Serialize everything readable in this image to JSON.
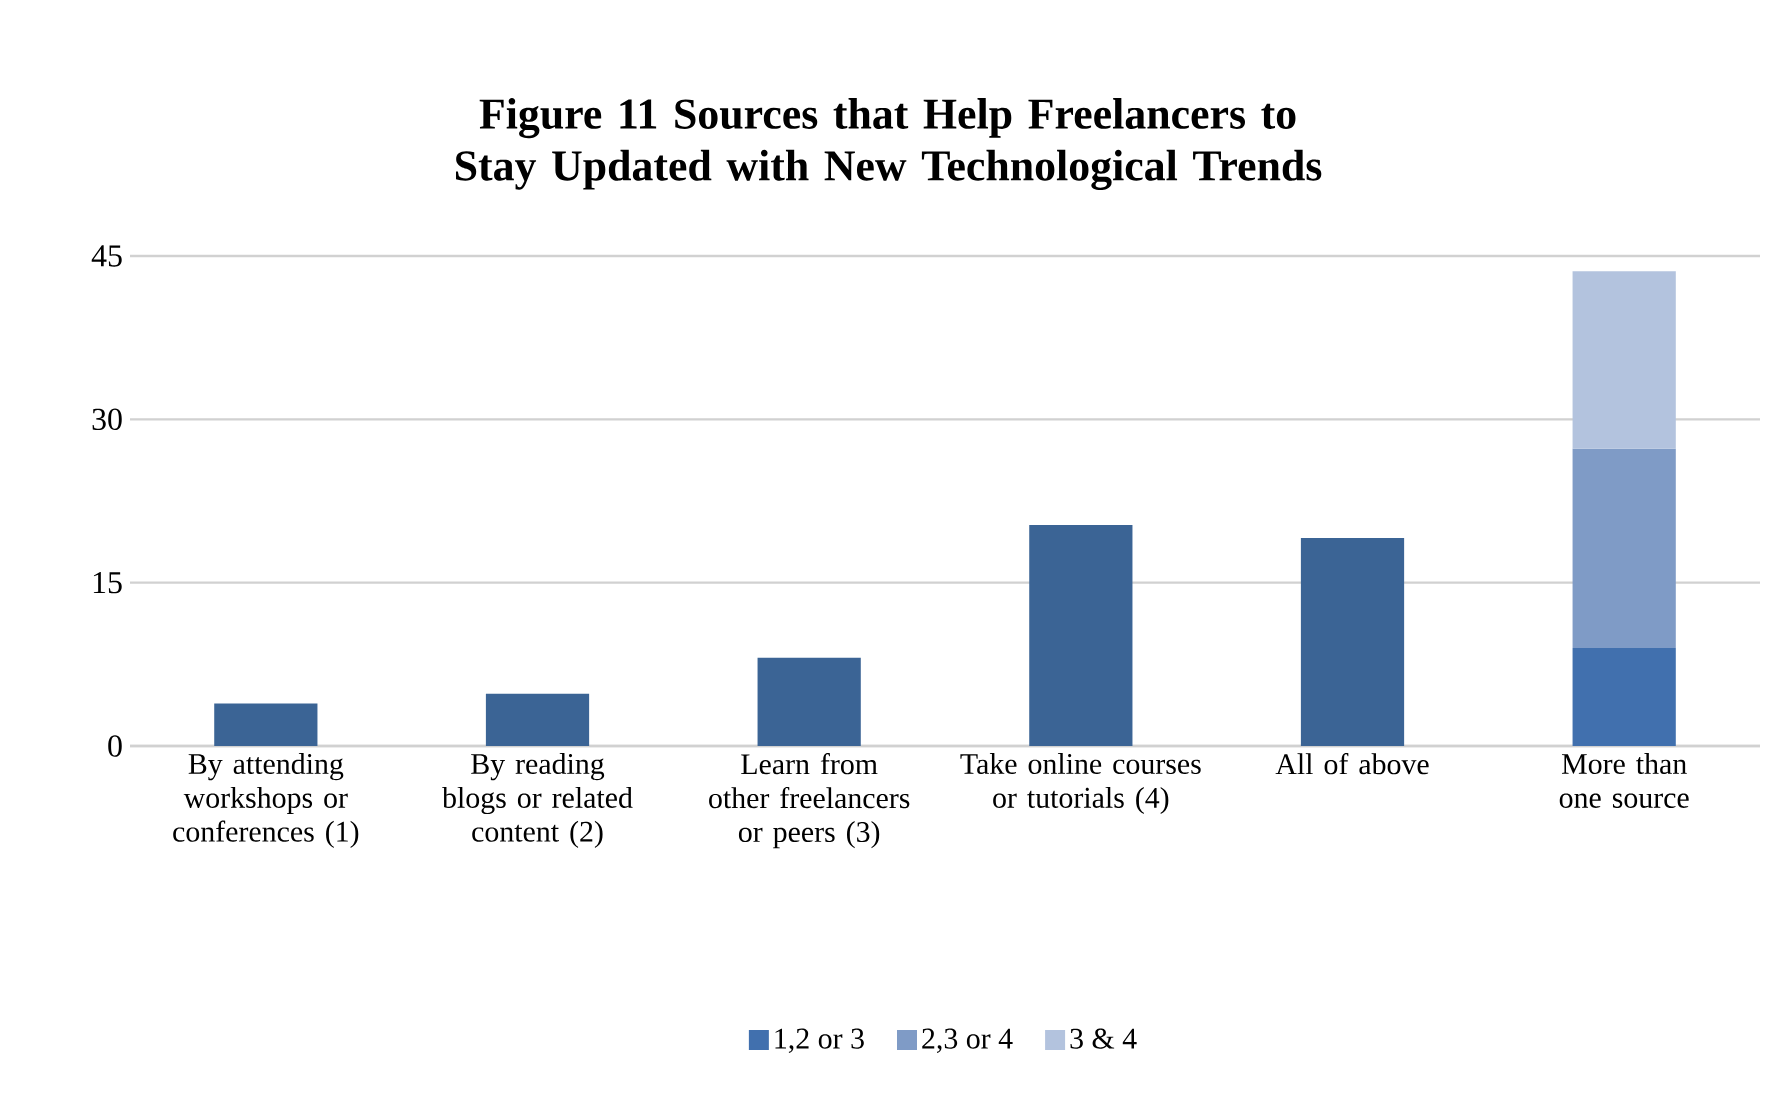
{
  "chart_data": {
    "type": "bar",
    "title": "Figure 11 Sources that Help Freelancers to Stay Updated with New Technological Trends",
    "categories": [
      "By attending workshops or conferences (1)",
      "By reading blogs or related content (2)",
      "Learn from other freelancers or peers (3)",
      "Take online courses or tutorials (4)",
      "All of above",
      "More than one source"
    ],
    "series": [
      {
        "name": "1,2 or 3",
        "color": "#4170ae",
        "colors": [
          "#3b6495",
          "#3b6495",
          "#3b6495",
          "#3b6495",
          "#3b6495",
          "#4170ae"
        ],
        "values": [
          3.9,
          4.8,
          8.1,
          20.3,
          19.1,
          9
        ]
      },
      {
        "name": "2,3 or 4",
        "color": "#7f9bc6",
        "values": [
          null,
          null,
          null,
          null,
          null,
          18.3
        ]
      },
      {
        "name": "3 & 4",
        "color": "#b3c3de",
        "values": [
          null,
          null,
          null,
          null,
          null,
          16.3
        ]
      }
    ],
    "stacked": true,
    "ylim": [
      0,
      45
    ],
    "yticks": [
      0,
      15,
      30,
      45
    ],
    "grid": "y",
    "legend": "bottom"
  }
}
